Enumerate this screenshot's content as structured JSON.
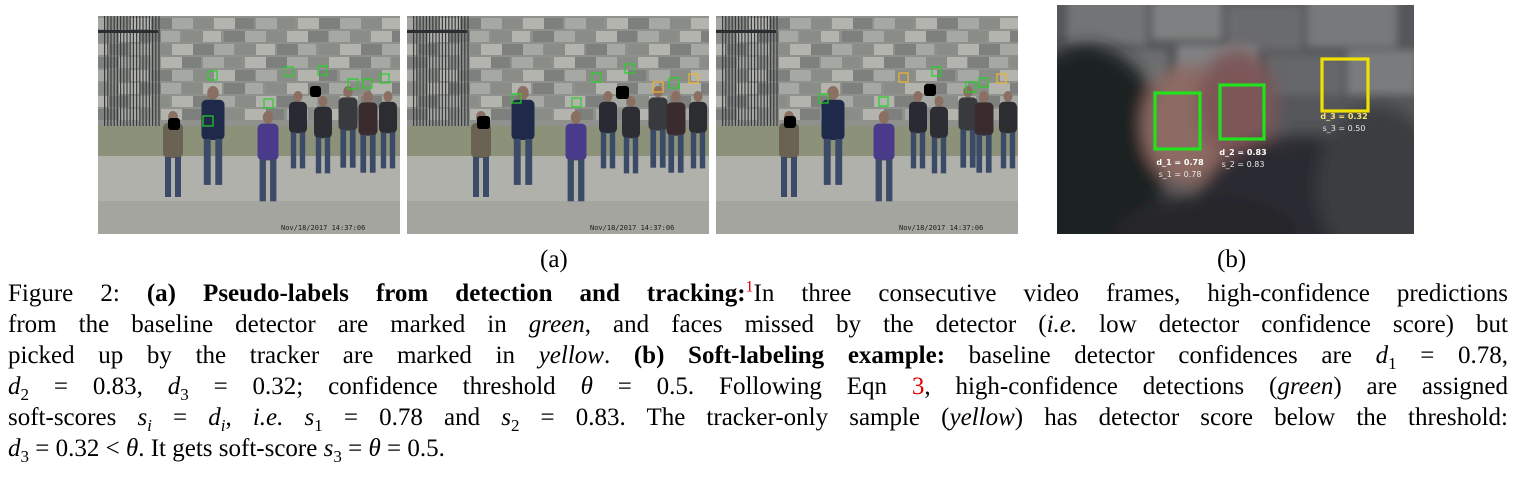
{
  "figure": {
    "panel_a": {
      "label": "(a)",
      "timestamp": "Nov/18/2017 14:37:06",
      "colors": {
        "green": "#22d322",
        "yellow": "#f2b62e",
        "black": "#000000"
      }
    },
    "panel_b": {
      "label": "(b)",
      "boxes": [
        {
          "d_label": "d_1 = 0.78",
          "s_label": "s_1 = 0.78",
          "color": "#22e21e"
        },
        {
          "d_label": "d_2 = 0.83",
          "s_label": "s_2 = 0.83",
          "color": "#22e21e"
        },
        {
          "d_label": "d_3 = 0.32",
          "s_label": "s_3 = 0.50",
          "color": "#f1e100"
        }
      ]
    }
  },
  "caption": {
    "prefix": "Figure 2: ",
    "a_head": "(a) Pseudo-labels from detection and tracking:",
    "footnote": "1",
    "l1_rest": "In three consecutive video frames, high-confidence predictions",
    "l2_a": "from the baseline detector are marked in ",
    "green": "green",
    "l2_b": ", and faces missed by the detector (",
    "ie": "i.e.",
    "l2_c": " low detector confidence score) but",
    "l3_a": "picked up by the tracker are marked in ",
    "yellow": "yellow",
    "l3_b": ".  ",
    "b_head": "(b) Soft-labeling example:",
    "l3_c": " baseline detector confidences are ",
    "d1": "d",
    "d1_sub": "1",
    "d1_val": " = 0.78,",
    "d2": "d",
    "d2_sub": "2",
    "d2_val": " = 0.83, ",
    "d3": "d",
    "d3_sub": "3",
    "d3_val": " = 0.32; confidence threshold ",
    "theta": "θ",
    "theta_val": " = 0.5.  Following Eqn ",
    "eqn": "3",
    "l4_b": ", high-confidence detections (",
    "green2": "green",
    "l4_c": ") are assigned",
    "l5_a": "soft-scores ",
    "si": "s",
    "si_sub": "i",
    "l5_eq": " = ",
    "di": "d",
    "di_sub": "i",
    "l5_b": ", ",
    "ie2": "i.e.",
    "l5_c": " ",
    "s1": "s",
    "s1_sub": "1",
    "l5_d": " = 0.78 and ",
    "s2": "s",
    "s2_sub": "2",
    "l5_e": " = 0.83. The tracker-only sample (",
    "yellow2": "yellow",
    "l5_f": ") has detector score below the threshold:",
    "d3b": "d",
    "d3b_sub": "3",
    "l6_a": " = 0.32 < ",
    "theta2": "θ",
    "l6_b": ". It gets soft-score ",
    "s3": "s",
    "s3_sub": "3",
    "l6_c": " = ",
    "theta3": "θ",
    "l6_d": " = 0.5."
  }
}
